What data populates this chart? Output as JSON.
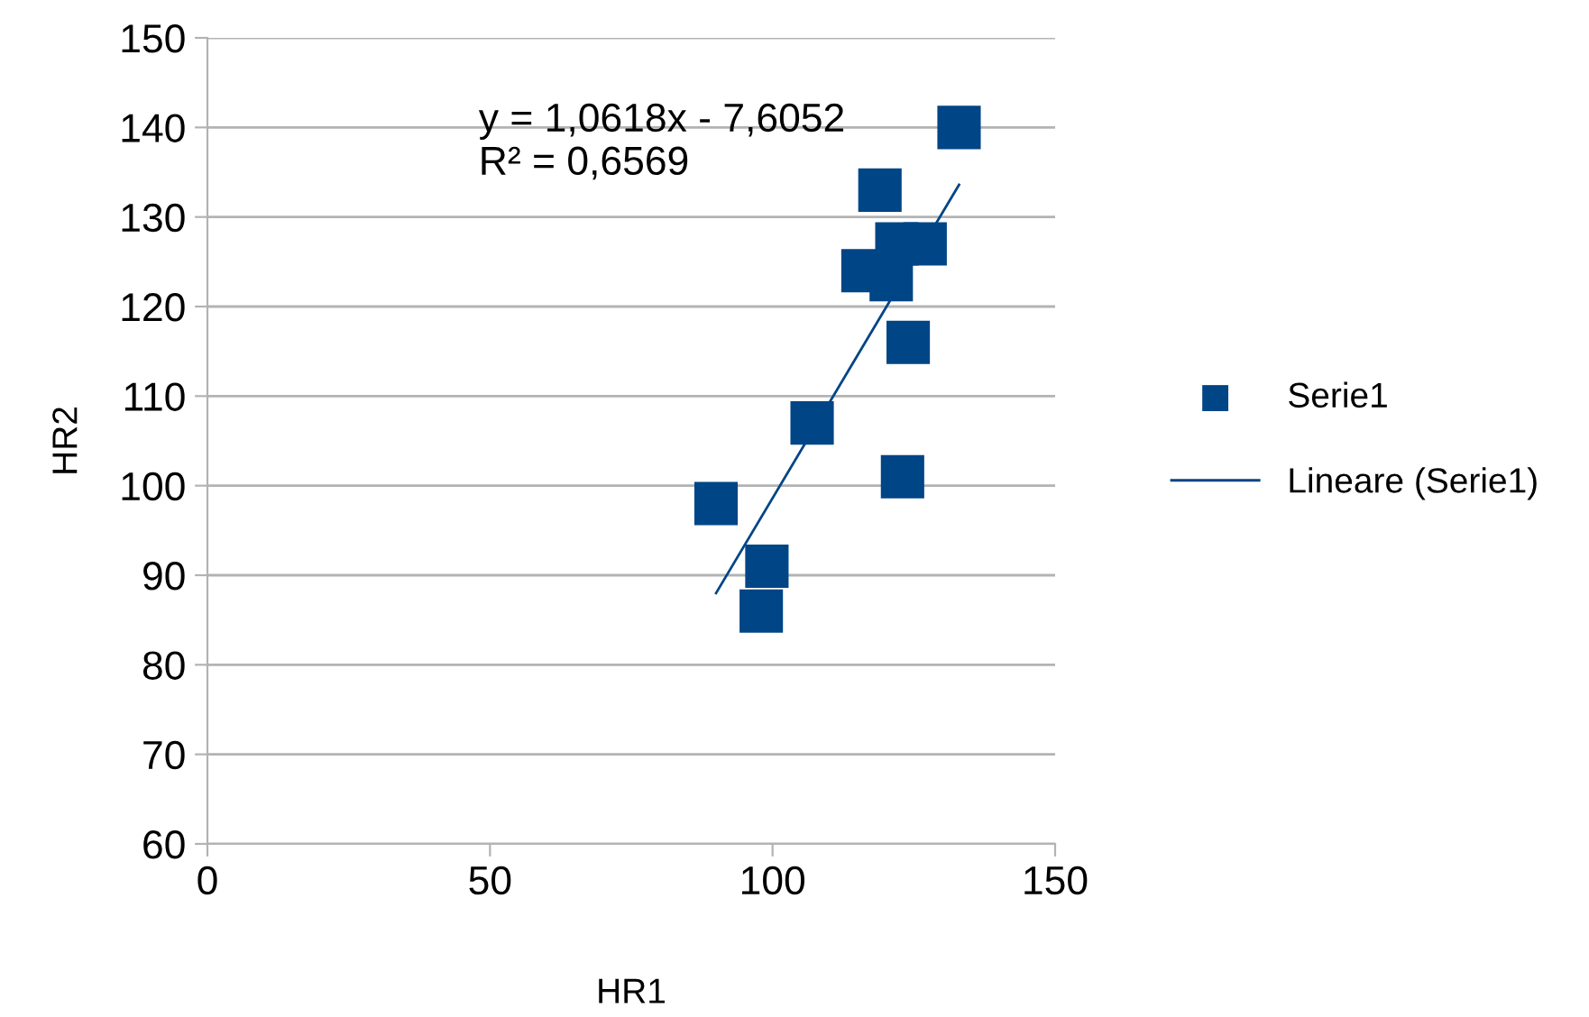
{
  "chart_data": {
    "type": "scatter",
    "xlabel": "HR1",
    "ylabel": "HR2",
    "xlim": [
      0,
      150
    ],
    "xticks": [
      0,
      50,
      100,
      150
    ],
    "ylim": [
      60,
      150
    ],
    "yticks": [
      60,
      70,
      80,
      90,
      100,
      110,
      120,
      130,
      140,
      150
    ],
    "grid": "y",
    "legend": "right",
    "annotations": [
      "y = 1,0618x - 7,6052",
      "R² = 0,6569"
    ],
    "series": [
      {
        "name": "Serie1",
        "color": "#004586",
        "marker": "square",
        "x": [
          133,
          119,
          122,
          127,
          116,
          121,
          124,
          107,
          123,
          90,
          99,
          98
        ],
        "values": [
          140,
          133,
          127,
          127,
          124,
          123,
          116,
          107,
          101,
          98,
          91,
          86
        ]
      },
      {
        "name": "Lineare (Serie1)",
        "type": "line",
        "marker": "none",
        "color": "#004586",
        "x": [
          90,
          133
        ],
        "values": [
          88,
          133.6
        ]
      }
    ]
  }
}
